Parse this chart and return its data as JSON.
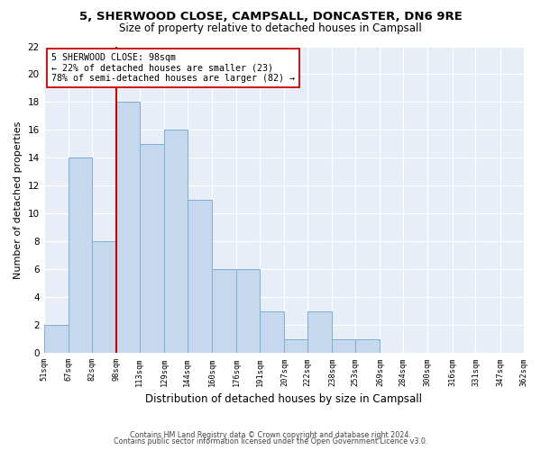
{
  "title1": "5, SHERWOOD CLOSE, CAMPSALL, DONCASTER, DN6 9RE",
  "title2": "Size of property relative to detached houses in Campsall",
  "xlabel": "Distribution of detached houses by size in Campsall",
  "ylabel": "Number of detached properties",
  "bin_edges": [
    51,
    67,
    82,
    98,
    113,
    129,
    144,
    160,
    176,
    191,
    207,
    222,
    238,
    253,
    269,
    284,
    300,
    316,
    331,
    347,
    362
  ],
  "counts": [
    2,
    14,
    8,
    18,
    15,
    16,
    11,
    6,
    6,
    3,
    1,
    3,
    1,
    1,
    0,
    0,
    0,
    0,
    0,
    0
  ],
  "bar_color": "#c5d8ee",
  "bar_edgecolor": "#7bafd4",
  "ref_line_x": 98,
  "ref_line_color": "#cc0000",
  "annotation_line1": "5 SHERWOOD CLOSE: 98sqm",
  "annotation_line2": "← 22% of detached houses are smaller (23)",
  "annotation_line3": "78% of semi-detached houses are larger (82) →",
  "ylim": [
    0,
    22
  ],
  "yticks": [
    0,
    2,
    4,
    6,
    8,
    10,
    12,
    14,
    16,
    18,
    20,
    22
  ],
  "tick_labels": [
    "51sqm",
    "67sqm",
    "82sqm",
    "98sqm",
    "113sqm",
    "129sqm",
    "144sqm",
    "160sqm",
    "176sqm",
    "191sqm",
    "207sqm",
    "222sqm",
    "238sqm",
    "253sqm",
    "269sqm",
    "284sqm",
    "300sqm",
    "316sqm",
    "331sqm",
    "347sqm",
    "362sqm"
  ],
  "footer1": "Contains HM Land Registry data © Crown copyright and database right 2024.",
  "footer2": "Contains public sector information licensed under the Open Government Licence v3.0.",
  "bg_color": "#ffffff",
  "plot_bg_color": "#e8eef8"
}
